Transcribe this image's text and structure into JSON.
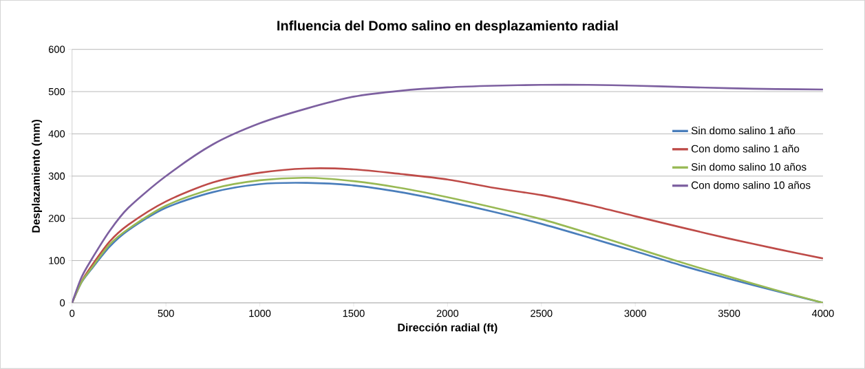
{
  "chart_data": {
    "type": "line",
    "title": "Influencia del Domo salino en desplazamiento radial",
    "xlabel": "Dirección radial (ft)",
    "ylabel": "Desplazamiento (mm)",
    "xlim": [
      0,
      4000
    ],
    "ylim": [
      0,
      600
    ],
    "xticks": [
      0,
      500,
      1000,
      1500,
      2000,
      2500,
      3000,
      3500,
      4000
    ],
    "yticks": [
      0,
      100,
      200,
      300,
      400,
      500,
      600
    ],
    "grid": "y",
    "legend": "right",
    "marker": "none",
    "line_style": "solid",
    "x": [
      0,
      50,
      100,
      200,
      300,
      500,
      750,
      1000,
      1250,
      1500,
      1750,
      2000,
      2250,
      2500,
      2750,
      3000,
      3250,
      3500,
      3750,
      4000
    ],
    "series": [
      {
        "name": "Sin domo salino 1 año",
        "color": "#4a7ebb",
        "values": [
          0,
          48,
          78,
          133,
          172,
          225,
          262,
          281,
          284,
          278,
          262,
          240,
          215,
          187,
          155,
          122,
          88,
          57,
          28,
          0
        ]
      },
      {
        "name": "Con domo salino 1 año",
        "color": "#be4b48",
        "values": [
          0,
          50,
          85,
          145,
          185,
          240,
          285,
          308,
          318,
          316,
          305,
          292,
          272,
          255,
          232,
          205,
          178,
          152,
          128,
          105
        ]
      },
      {
        "name": "Sin domo salino 10 años",
        "color": "#98b954",
        "values": [
          0,
          49,
          80,
          138,
          175,
          230,
          270,
          290,
          296,
          288,
          272,
          250,
          225,
          198,
          165,
          130,
          95,
          62,
          30,
          0
        ]
      },
      {
        "name": "Con domo salino 10 años",
        "color": "#7d60a0",
        "values": [
          0,
          60,
          100,
          170,
          225,
          300,
          375,
          425,
          460,
          488,
          502,
          510,
          514,
          516,
          516,
          514,
          511,
          508,
          506,
          505
        ]
      }
    ]
  }
}
